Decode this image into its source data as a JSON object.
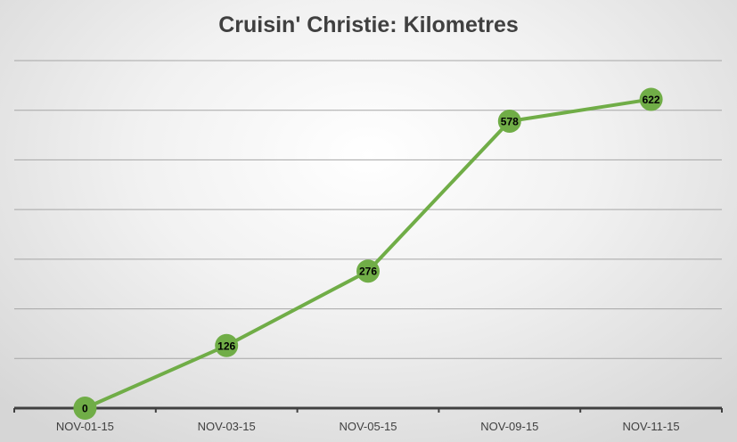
{
  "chart_data": {
    "type": "line",
    "title": "Cruisin' Christie: Kilometres",
    "categories": [
      "NOV-01-15",
      "NOV-03-15",
      "NOV-05-15",
      "NOV-09-15",
      "NOV-11-15"
    ],
    "series": [
      {
        "values": [
          0,
          126,
          276,
          578,
          622
        ]
      }
    ],
    "data_labels": [
      "0",
      "126",
      "276",
      "578",
      "622"
    ],
    "ylim": [
      0,
      700
    ],
    "y_gridline_step": 100,
    "y_tick_labels_shown": false,
    "grid": true,
    "legend": "none",
    "colors": {
      "line": "#70ad47",
      "marker": "#70ad47",
      "grid": "#a6a6a6",
      "axis": "#404040",
      "text": "#404040"
    }
  }
}
